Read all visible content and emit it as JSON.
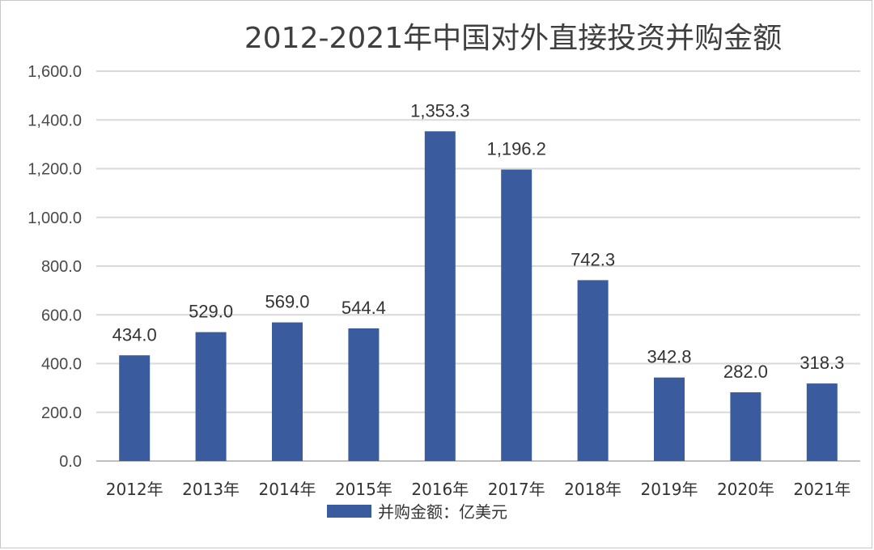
{
  "chart_data": {
    "type": "bar",
    "title": "2012-2021年中国对外直接投资并购金额",
    "categories": [
      "2012年",
      "2013年",
      "2014年",
      "2015年",
      "2016年",
      "2017年",
      "2018年",
      "2019年",
      "2020年",
      "2021年"
    ],
    "series": [
      {
        "name": "并购金额：亿美元",
        "values": [
          434.0,
          529.0,
          569.0,
          544.4,
          1353.3,
          1196.2,
          742.3,
          342.8,
          282.0,
          318.3
        ],
        "labels": [
          "434.0",
          "529.0",
          "569.0",
          "544.4",
          "1,353.3",
          "1,196.2",
          "742.3",
          "342.8",
          "282.0",
          "318.3"
        ],
        "color": "#3a5c9e"
      }
    ],
    "ylim": [
      0,
      1600
    ],
    "yticks": [
      0,
      200,
      400,
      600,
      800,
      1000,
      1200,
      1400,
      1600
    ],
    "ytick_labels": [
      "0.0",
      "200.0",
      "400.0",
      "600.0",
      "800.0",
      "1,000.0",
      "1,200.0",
      "1,400.0",
      "1,600.0"
    ],
    "xlabel": "",
    "ylabel": "",
    "grid": true,
    "legend_position": "bottom"
  }
}
